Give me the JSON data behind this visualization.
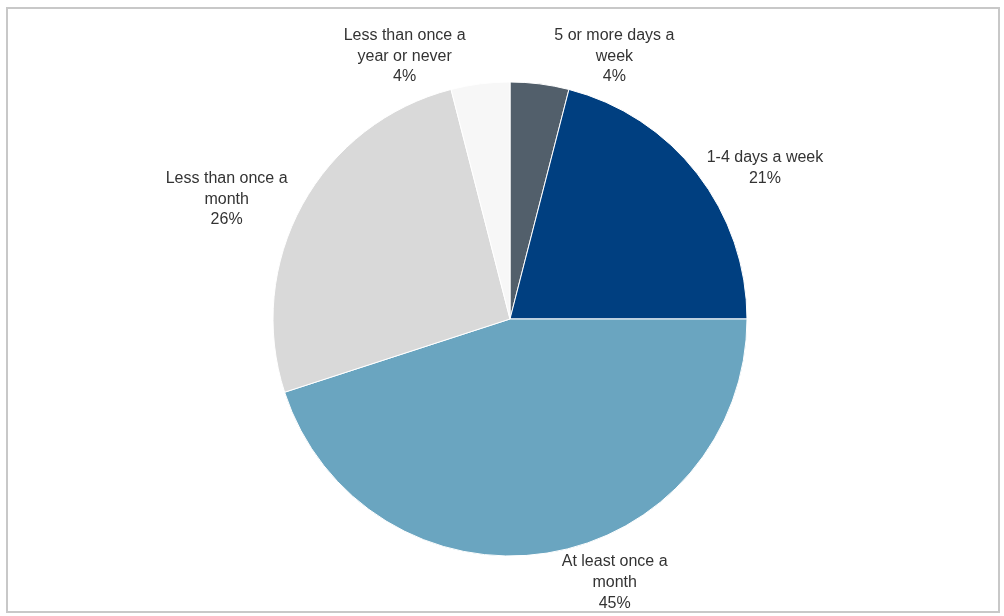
{
  "chart_data": {
    "type": "pie",
    "categories": [
      "5 or more days a week",
      "1-4 days a week",
      "At least once a month",
      "Less than once a month",
      "Less than once a year or never"
    ],
    "values": [
      4,
      21,
      45,
      26,
      4
    ],
    "value_labels": [
      "4%",
      "21%",
      "45%",
      "26%",
      "4%"
    ],
    "colors": [
      "#525f6b",
      "#003f80",
      "#6aa5c0",
      "#d9d9d9",
      "#f7f7f7"
    ],
    "legend": false
  }
}
